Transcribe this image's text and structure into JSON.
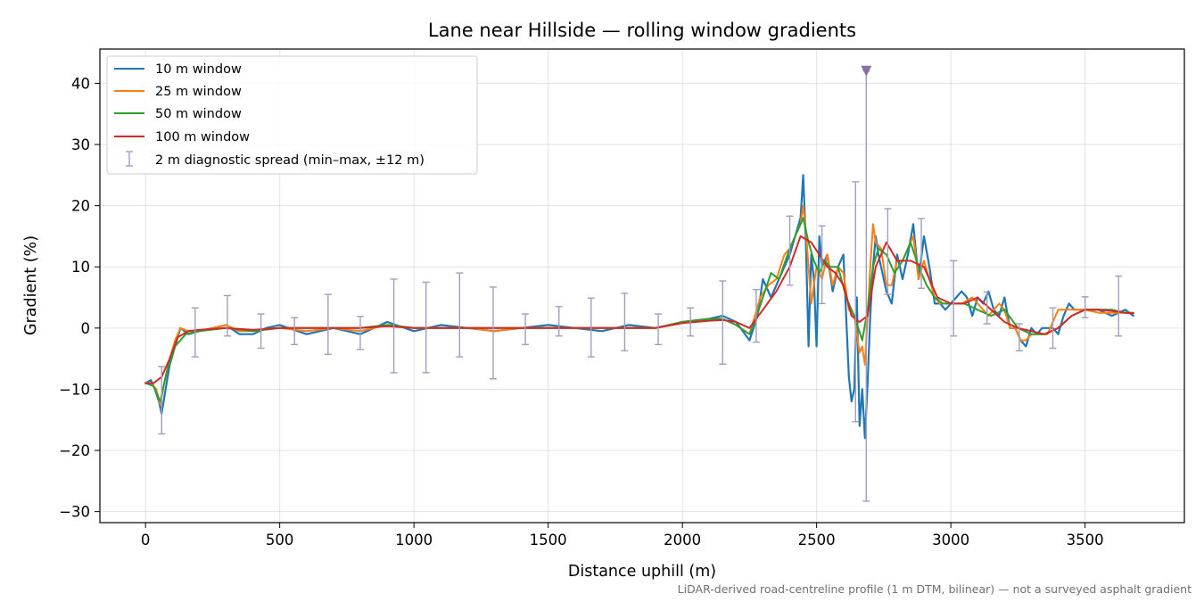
{
  "chart_data": {
    "type": "line",
    "title": "Lane near Hillside — rolling window gradients",
    "xlabel": "Distance uphill (m)",
    "ylabel": "Gradient (%)",
    "xlim": [
      -170,
      3870
    ],
    "ylim": [
      -31.8,
      45.6
    ],
    "xticks": [
      0,
      500,
      1000,
      1500,
      2000,
      2500,
      3000,
      3500
    ],
    "yticks": [
      -30,
      -20,
      -10,
      0,
      10,
      20,
      30,
      40
    ],
    "grid": true,
    "legend_position": "upper-left",
    "footnote": "LiDAR-derived road-centreline profile (1 m DTM, bilinear) — not a surveyed asphalt gradient",
    "series": [
      {
        "name": "10 m window",
        "color": "#1f77b4",
        "x": [
          0,
          20,
          35,
          50,
          60,
          75,
          90,
          110,
          130,
          160,
          200,
          250,
          300,
          350,
          400,
          450,
          500,
          600,
          700,
          800,
          900,
          1000,
          1100,
          1200,
          1300,
          1400,
          1500,
          1600,
          1700,
          1800,
          1900,
          2000,
          2100,
          2150,
          2200,
          2250,
          2280,
          2300,
          2330,
          2350,
          2380,
          2400,
          2420,
          2440,
          2450,
          2460,
          2470,
          2480,
          2490,
          2500,
          2510,
          2520,
          2540,
          2560,
          2580,
          2600,
          2620,
          2630,
          2640,
          2650,
          2660,
          2670,
          2680,
          2690,
          2700,
          2710,
          2720,
          2730,
          2740,
          2760,
          2780,
          2800,
          2820,
          2840,
          2860,
          2880,
          2900,
          2920,
          2940,
          2960,
          2980,
          3000,
          3020,
          3040,
          3060,
          3080,
          3100,
          3120,
          3140,
          3160,
          3180,
          3200,
          3220,
          3240,
          3260,
          3280,
          3300,
          3320,
          3340,
          3360,
          3380,
          3400,
          3420,
          3440,
          3460,
          3480,
          3500,
          3550,
          3600,
          3650,
          3680
        ],
        "y": [
          -9,
          -8.5,
          -10,
          -12,
          -14,
          -10,
          -6,
          -3,
          0,
          -1,
          -0.5,
          0,
          0.5,
          -1,
          -1,
          0,
          0.5,
          -1,
          0,
          -1,
          1,
          -0.5,
          0.5,
          0,
          -0.5,
          0,
          0.5,
          0,
          -0.5,
          0.5,
          0,
          1,
          1.5,
          2,
          1,
          -2,
          2,
          8,
          5,
          7,
          10,
          12,
          15,
          18,
          25,
          14,
          -3,
          12,
          8,
          -3,
          15,
          10,
          12,
          6,
          10,
          12,
          -8,
          -12,
          -10,
          5,
          -16,
          -10,
          -18,
          -9,
          2,
          10,
          15,
          12,
          10,
          6,
          4,
          12,
          8,
          12,
          17,
          8,
          15,
          10,
          4,
          4,
          3,
          4,
          5,
          6,
          5,
          2,
          5,
          4,
          6,
          3,
          2,
          5,
          0,
          0,
          -2,
          -3,
          0,
          -1,
          0,
          0,
          0,
          -1,
          2,
          4,
          3,
          3,
          3,
          3,
          2,
          3,
          2
        ]
      },
      {
        "name": "25 m window",
        "color": "#ff7f0e",
        "x": [
          0,
          20,
          40,
          55,
          70,
          90,
          110,
          130,
          160,
          200,
          250,
          300,
          350,
          400,
          500,
          600,
          700,
          800,
          900,
          1000,
          1100,
          1200,
          1300,
          1400,
          1500,
          1600,
          1700,
          1800,
          1900,
          2000,
          2100,
          2150,
          2200,
          2250,
          2270,
          2290,
          2320,
          2350,
          2380,
          2400,
          2420,
          2440,
          2450,
          2460,
          2480,
          2500,
          2520,
          2540,
          2560,
          2580,
          2600,
          2620,
          2640,
          2660,
          2670,
          2680,
          2690,
          2700,
          2710,
          2720,
          2740,
          2760,
          2780,
          2800,
          2820,
          2840,
          2860,
          2880,
          2900,
          2920,
          2940,
          2960,
          2980,
          3000,
          3040,
          3080,
          3100,
          3120,
          3140,
          3160,
          3180,
          3200,
          3220,
          3240,
          3260,
          3280,
          3300,
          3320,
          3340,
          3360,
          3380,
          3400,
          3420,
          3450,
          3500,
          3550,
          3600,
          3650,
          3680
        ],
        "y": [
          -9,
          -9,
          -10,
          -12.5,
          -9,
          -5,
          -2,
          0,
          -0.5,
          -0.5,
          0,
          0.5,
          -0.5,
          -0.5,
          0,
          -0.5,
          0,
          -0.5,
          0.5,
          0,
          0,
          0,
          -0.5,
          0,
          0,
          0,
          0,
          0,
          0,
          1,
          1.5,
          1.5,
          0.5,
          -1,
          2,
          5,
          7,
          8,
          12,
          13,
          15,
          17,
          20,
          16,
          4,
          10,
          8,
          12,
          7,
          10,
          9,
          3,
          2,
          -4,
          -3,
          -6,
          2,
          10,
          17,
          14,
          13,
          7,
          7,
          11,
          11,
          13,
          15,
          8,
          11,
          8,
          5,
          4,
          4,
          4,
          4,
          5,
          4,
          3,
          2,
          3,
          4,
          3,
          0,
          0,
          -2,
          -2,
          -1,
          -1,
          -1,
          -1,
          1,
          3,
          3,
          3,
          3,
          2.5,
          2.5,
          2.5,
          2.5
        ]
      },
      {
        "name": "50 m window",
        "color": "#2ca02c",
        "x": [
          0,
          30,
          55,
          80,
          110,
          150,
          200,
          300,
          400,
          500,
          600,
          700,
          800,
          900,
          1000,
          1100,
          1200,
          1300,
          1400,
          1500,
          1600,
          1700,
          1800,
          1900,
          2000,
          2100,
          2150,
          2200,
          2250,
          2270,
          2300,
          2330,
          2360,
          2400,
          2430,
          2450,
          2470,
          2490,
          2510,
          2530,
          2550,
          2580,
          2610,
          2640,
          2670,
          2690,
          2710,
          2730,
          2760,
          2790,
          2820,
          2850,
          2880,
          2910,
          2940,
          2970,
          3000,
          3050,
          3100,
          3150,
          3200,
          3250,
          3300,
          3350,
          3400,
          3450,
          3500,
          3550,
          3600,
          3650,
          3680
        ],
        "y": [
          -9,
          -9.5,
          -12,
          -7,
          -3,
          -1,
          -0.5,
          0,
          -0.5,
          0,
          0,
          0,
          0,
          0.5,
          0,
          0,
          0,
          0,
          0,
          0,
          0,
          0,
          0,
          0,
          1,
          1.5,
          1.5,
          0.5,
          -1,
          1,
          5,
          9,
          8,
          13,
          16,
          18,
          14,
          11,
          9,
          11,
          10,
          10,
          5,
          2,
          -2,
          3,
          10,
          13,
          12,
          9,
          11,
          14,
          10,
          7,
          5,
          4,
          4,
          4,
          3,
          2,
          3,
          0,
          -1,
          -1,
          0,
          2,
          3,
          3,
          3,
          2.5,
          2.5
        ]
      },
      {
        "name": "100 m window",
        "color": "#d62728",
        "x": [
          0,
          30,
          60,
          90,
          120,
          160,
          200,
          300,
          400,
          500,
          600,
          700,
          800,
          900,
          1000,
          1100,
          1200,
          1300,
          1400,
          1500,
          1600,
          1700,
          1800,
          1900,
          2000,
          2100,
          2150,
          2200,
          2250,
          2300,
          2350,
          2400,
          2440,
          2480,
          2510,
          2540,
          2570,
          2600,
          2630,
          2660,
          2690,
          2720,
          2760,
          2800,
          2850,
          2900,
          2950,
          3000,
          3050,
          3100,
          3150,
          3200,
          3250,
          3300,
          3350,
          3400,
          3450,
          3500,
          3550,
          3600,
          3650,
          3680
        ],
        "y": [
          -9,
          -9,
          -8,
          -5,
          -1.5,
          -0.5,
          -0.3,
          0,
          -0.3,
          0,
          0,
          0,
          0,
          0.3,
          0,
          0,
          0,
          0,
          0,
          0,
          0,
          0,
          0,
          0,
          0.8,
          1.2,
          1.3,
          1,
          0,
          3,
          6,
          10,
          15,
          14,
          12,
          10,
          9,
          7,
          2,
          1,
          2,
          10,
          14,
          11,
          11,
          10,
          5,
          4,
          4,
          5,
          3,
          1,
          0,
          -0.5,
          -1,
          0,
          2,
          3,
          3,
          2.8,
          2.5,
          2.4
        ]
      }
    ],
    "errorbars": {
      "name": "2 m diagnostic spread (min–max, ±12 m)",
      "color": "#a39dbd",
      "points": [
        {
          "x": 60,
          "ymin": -17.3,
          "ymax": -6.3
        },
        {
          "x": 185,
          "ymin": -4.7,
          "ymax": 3.3
        },
        {
          "x": 305,
          "ymin": -1.3,
          "ymax": 5.3
        },
        {
          "x": 430,
          "ymin": -3.3,
          "ymax": 2.3
        },
        {
          "x": 555,
          "ymin": -2.7,
          "ymax": 1.7
        },
        {
          "x": 680,
          "ymin": -4.3,
          "ymax": 5.5
        },
        {
          "x": 800,
          "ymin": -3.5,
          "ymax": 1.9
        },
        {
          "x": 925,
          "ymin": -7.3,
          "ymax": 8.0
        },
        {
          "x": 1045,
          "ymin": -7.3,
          "ymax": 7.5
        },
        {
          "x": 1170,
          "ymin": -4.7,
          "ymax": 9.0
        },
        {
          "x": 1295,
          "ymin": -8.3,
          "ymax": 6.7
        },
        {
          "x": 1415,
          "ymin": -2.7,
          "ymax": 2.3
        },
        {
          "x": 1540,
          "ymin": -1.3,
          "ymax": 3.5
        },
        {
          "x": 1660,
          "ymin": -4.7,
          "ymax": 4.9
        },
        {
          "x": 1785,
          "ymin": -3.7,
          "ymax": 5.7
        },
        {
          "x": 1910,
          "ymin": -2.7,
          "ymax": 2.3
        },
        {
          "x": 2030,
          "ymin": -1.3,
          "ymax": 3.3
        },
        {
          "x": 2150,
          "ymin": -5.9,
          "ymax": 7.7
        },
        {
          "x": 2275,
          "ymin": -2.3,
          "ymax": 6.3
        },
        {
          "x": 2400,
          "ymin": 7.0,
          "ymax": 18.3
        },
        {
          "x": 2520,
          "ymin": 4.0,
          "ymax": 16.7
        },
        {
          "x": 2645,
          "ymin": -15.3,
          "ymax": 23.9
        },
        {
          "x": 2685,
          "ymin": -28.3,
          "ymax": 42.0
        },
        {
          "x": 2765,
          "ymin": 5.5,
          "ymax": 19.5
        },
        {
          "x": 2890,
          "ymin": 6.5,
          "ymax": 17.9
        },
        {
          "x": 3010,
          "ymin": -1.3,
          "ymax": 11.0
        },
        {
          "x": 3135,
          "ymin": 0.7,
          "ymax": 5.9
        },
        {
          "x": 3255,
          "ymin": -3.7,
          "ymax": 0.7
        },
        {
          "x": 3380,
          "ymin": -3.3,
          "ymax": 3.3
        },
        {
          "x": 3500,
          "ymin": 1.7,
          "ymax": 5.1
        },
        {
          "x": 3625,
          "ymin": -1.3,
          "ymax": 8.5
        }
      ],
      "marker": {
        "x": 2685,
        "y": 42
      }
    }
  }
}
